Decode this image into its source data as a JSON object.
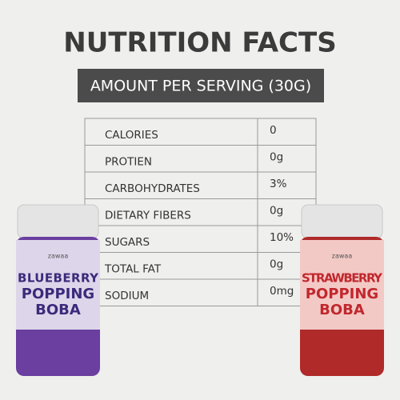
{
  "header": {
    "title": "NUTRITION FACTS",
    "subtitle": "AMOUNT PER SERVING (30G)"
  },
  "table": {
    "rows": [
      [
        "CALORIES",
        "0"
      ],
      [
        "PROTIEN",
        "0g"
      ],
      [
        "CARBOHYDRATES",
        "3%"
      ],
      [
        "DIETARY FIBERS",
        "0g"
      ],
      [
        "SUGARS",
        "10%"
      ],
      [
        "TOTAL FAT",
        "0g"
      ],
      [
        "SODIUM",
        "0mg"
      ]
    ]
  },
  "products": [
    {
      "brand": "zawaa",
      "name": [
        "BLUEBERRY",
        "POPPING",
        "BOBA"
      ]
    },
    {
      "brand": "zawaa",
      "name": [
        "STRAWBERRY",
        "POPPING",
        "BOBA"
      ]
    }
  ]
}
